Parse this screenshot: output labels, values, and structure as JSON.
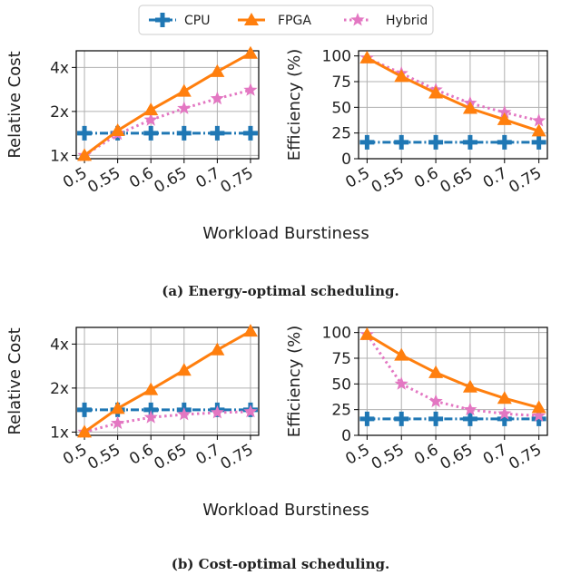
{
  "legend": [
    {
      "name": "CPU",
      "color": "#1f77b4",
      "marker": "plus",
      "line": "dashdot"
    },
    {
      "name": "FPGA",
      "color": "#ff7f0e",
      "marker": "triangle",
      "line": "solid"
    },
    {
      "name": "Hybrid",
      "color": "#e377c2",
      "marker": "star",
      "line": "dotted"
    }
  ],
  "shared_xlabel": "Workload Burstiness",
  "chart_data": [
    {
      "type": "line",
      "panel": "a-cost",
      "ylabel": "Relative Cost",
      "x": [
        "0.5",
        "0.55",
        "0.6",
        "0.65",
        "0.7",
        "0.75"
      ],
      "yscale": "log2",
      "ylim": [
        0.95,
        5.2
      ],
      "yticks": [
        {
          "value": 1,
          "label": "1x"
        },
        {
          "value": 2,
          "label": "2x"
        },
        {
          "value": 4,
          "label": "4x"
        }
      ],
      "grid": true,
      "series": [
        {
          "name": "CPU",
          "values": [
            1.42,
            1.42,
            1.42,
            1.42,
            1.42,
            1.42
          ]
        },
        {
          "name": "FPGA",
          "values": [
            1.0,
            1.48,
            2.05,
            2.75,
            3.75,
            5.0
          ]
        },
        {
          "name": "Hybrid",
          "values": [
            1.0,
            1.4,
            1.75,
            2.1,
            2.45,
            2.8
          ]
        }
      ]
    },
    {
      "type": "line",
      "panel": "a-eff",
      "ylabel": "Efficiency (%)",
      "x": [
        "0.5",
        "0.55",
        "0.6",
        "0.65",
        "0.7",
        "0.75"
      ],
      "yscale": "linear",
      "ylim": [
        0,
        105
      ],
      "yticks": [
        {
          "value": 0,
          "label": "0"
        },
        {
          "value": 25,
          "label": "25"
        },
        {
          "value": 50,
          "label": "50"
        },
        {
          "value": 75,
          "label": "75"
        },
        {
          "value": 100,
          "label": "100"
        }
      ],
      "grid": true,
      "series": [
        {
          "name": "CPU",
          "values": [
            16,
            16,
            16,
            16,
            16,
            16
          ]
        },
        {
          "name": "FPGA",
          "values": [
            98,
            80,
            64,
            49,
            38,
            27
          ]
        },
        {
          "name": "Hybrid",
          "values": [
            98,
            83,
            67,
            54,
            45,
            37
          ]
        }
      ]
    },
    {
      "type": "line",
      "panel": "b-cost",
      "ylabel": "Relative Cost",
      "x": [
        "0.5",
        "0.55",
        "0.6",
        "0.65",
        "0.7",
        "0.75"
      ],
      "yscale": "log2",
      "ylim": [
        0.95,
        5.2
      ],
      "yticks": [
        {
          "value": 1,
          "label": "1x"
        },
        {
          "value": 2,
          "label": "2x"
        },
        {
          "value": 4,
          "label": "4x"
        }
      ],
      "grid": true,
      "series": [
        {
          "name": "CPU",
          "values": [
            1.42,
            1.42,
            1.42,
            1.42,
            1.42,
            1.42
          ]
        },
        {
          "name": "FPGA",
          "values": [
            1.0,
            1.45,
            1.95,
            2.65,
            3.65,
            4.9
          ]
        },
        {
          "name": "Hybrid",
          "values": [
            1.0,
            1.15,
            1.26,
            1.32,
            1.36,
            1.38
          ]
        }
      ]
    },
    {
      "type": "line",
      "panel": "b-eff",
      "ylabel": "Efficiency (%)",
      "x": [
        "0.5",
        "0.55",
        "0.6",
        "0.65",
        "0.7",
        "0.75"
      ],
      "yscale": "linear",
      "ylim": [
        0,
        105
      ],
      "yticks": [
        {
          "value": 0,
          "label": "0"
        },
        {
          "value": 25,
          "label": "25"
        },
        {
          "value": 50,
          "label": "50"
        },
        {
          "value": 75,
          "label": "75"
        },
        {
          "value": 100,
          "label": "100"
        }
      ],
      "grid": true,
      "series": [
        {
          "name": "CPU",
          "values": [
            16,
            16,
            16,
            16,
            16,
            16
          ]
        },
        {
          "name": "FPGA",
          "values": [
            98,
            78,
            61,
            47,
            36,
            27
          ]
        },
        {
          "name": "Hybrid",
          "values": [
            98,
            50,
            33,
            25,
            21,
            19
          ]
        }
      ]
    }
  ],
  "captions": {
    "a": "(a) Energy-optimal scheduling.",
    "b": "(b) Cost-optimal scheduling."
  }
}
